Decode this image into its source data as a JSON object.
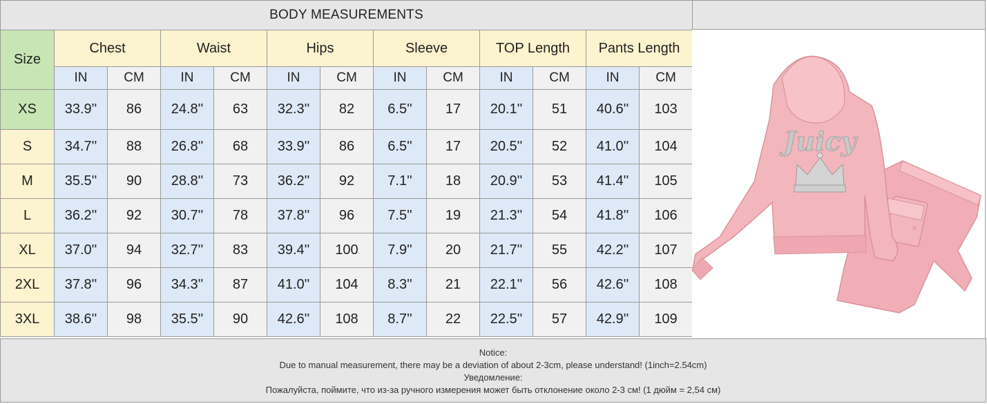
{
  "title": "BODY MEASUREMENTS",
  "size_label": "Size",
  "measures": [
    "Chest",
    "Waist",
    "Hips",
    "Sleeve",
    "TOP Length",
    "Pants Length"
  ],
  "unit_in": "IN",
  "unit_cm": "CM",
  "rows": [
    {
      "size": "XS",
      "values": [
        "33.9''",
        "86",
        "24.8''",
        "63",
        "32.3''",
        "82",
        "6.5''",
        "17",
        "20.1''",
        "51",
        "40.6''",
        "103"
      ]
    },
    {
      "size": "S",
      "values": [
        "34.7''",
        "88",
        "26.8''",
        "68",
        "33.9''",
        "86",
        "6.5''",
        "17",
        "20.5''",
        "52",
        "41.0''",
        "104"
      ]
    },
    {
      "size": "M",
      "values": [
        "35.5''",
        "90",
        "28.8''",
        "73",
        "36.2''",
        "92",
        "7.1''",
        "18",
        "20.9''",
        "53",
        "41.4''",
        "105"
      ]
    },
    {
      "size": "L",
      "values": [
        "36.2''",
        "92",
        "30.7''",
        "78",
        "37.8''",
        "96",
        "7.5''",
        "19",
        "21.3''",
        "54",
        "41.8''",
        "106"
      ]
    },
    {
      "size": "XL",
      "values": [
        "37.0''",
        "94",
        "32.7''",
        "83",
        "39.4''",
        "100",
        "7.9''",
        "20",
        "21.7''",
        "55",
        "42.2''",
        "107"
      ]
    },
    {
      "size": "2XL",
      "values": [
        "37.8''",
        "96",
        "34.3''",
        "87",
        "41.0''",
        "104",
        "8.3''",
        "21",
        "22.1''",
        "56",
        "42.6''",
        "108"
      ]
    },
    {
      "size": "3XL",
      "values": [
        "38.6''",
        "98",
        "35.5''",
        "90",
        "42.6''",
        "108",
        "8.7''",
        "22",
        "22.5''",
        "57",
        "42.9''",
        "109"
      ]
    }
  ],
  "notice": {
    "line1": "Notice:",
    "line2": "Due to manual measurement, there may be a deviation of about 2-3cm, please understand! (1inch=2.54cm)",
    "line3": "Уведомление:",
    "line4": "Пожалуйста, поймите, что из-за ручного измерения может быть отклонение около 2-3 см! (1 дюйм = 2,54 см)"
  },
  "product_image": {
    "description_icon": "pink-tracksuit-icon",
    "logo_text": "Juicy",
    "color": "#f4b6bd"
  }
}
